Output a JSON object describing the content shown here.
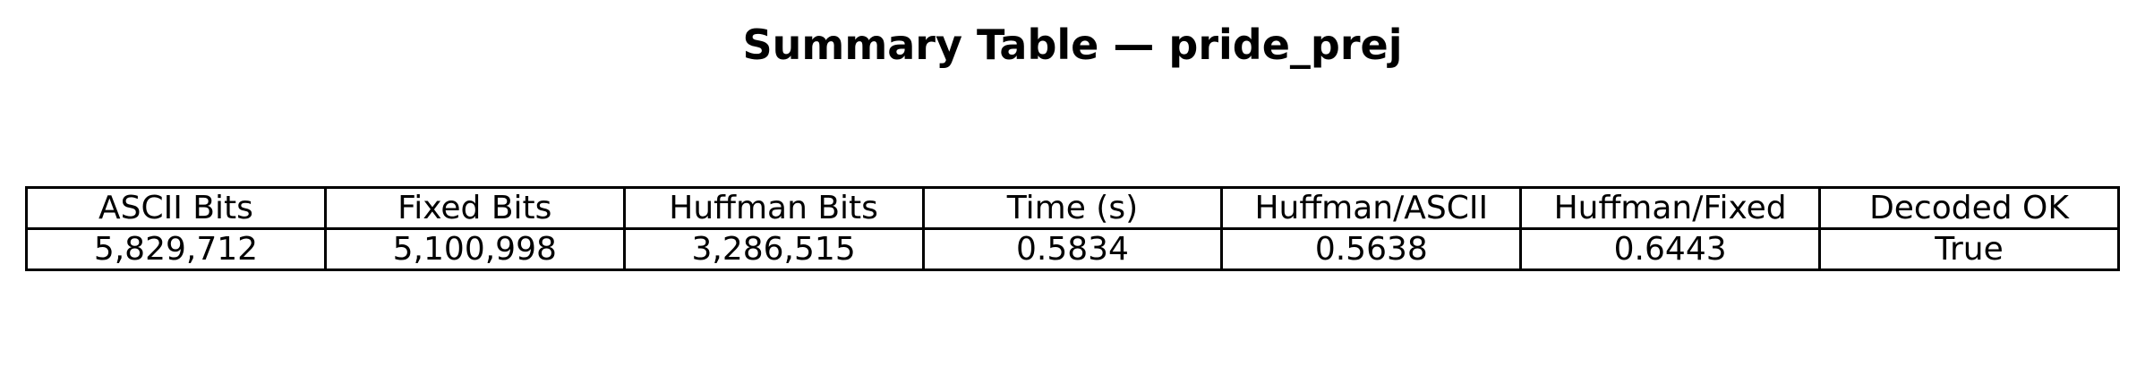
{
  "chart_data": {
    "type": "table",
    "title": "Summary Table — pride_prej",
    "columns": [
      "ASCII Bits",
      "Fixed Bits",
      "Huffman Bits",
      "Time (s)",
      "Huffman/ASCII",
      "Huffman/Fixed",
      "Decoded OK"
    ],
    "rows": [
      [
        "5,829,712",
        "5,100,998",
        "3,286,515",
        "0.5834",
        "0.5638",
        "0.6443",
        "True"
      ]
    ]
  }
}
